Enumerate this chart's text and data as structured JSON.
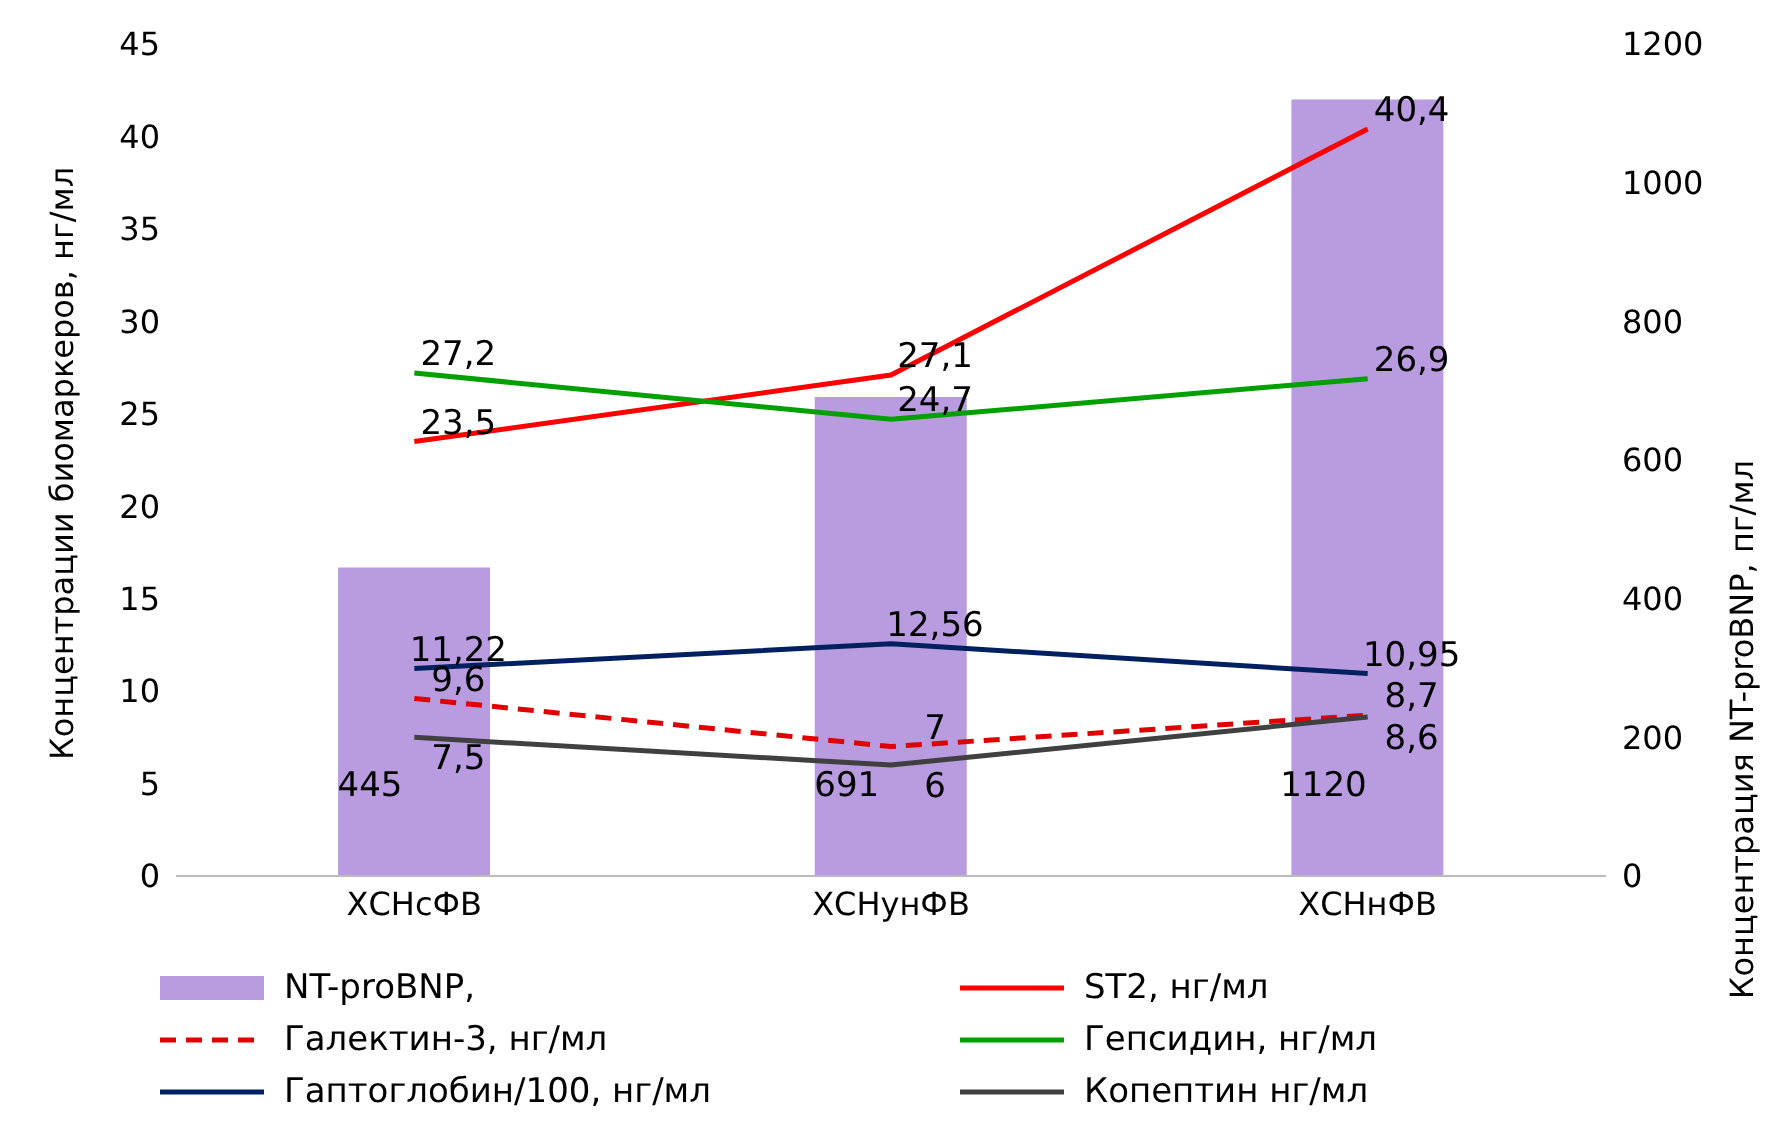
{
  "chart_data": {
    "type": "line",
    "categories": [
      "ХСНсФВ",
      "ХСНунФВ",
      "ХСНнФВ"
    ],
    "ylabel": "Концентрации биомаркеров, нг/мл",
    "y2label": "Концентрация NT-proBNP, пг/мл",
    "ylim": [
      0,
      45
    ],
    "yticks": [
      0,
      5,
      10,
      15,
      20,
      25,
      30,
      35,
      40,
      45
    ],
    "y2lim": [
      0,
      1200
    ],
    "y2ticks": [
      0,
      200,
      400,
      600,
      800,
      1000,
      1200
    ],
    "legend": "bottom",
    "series": [
      {
        "name": "NT-proBNP,",
        "type": "bar",
        "axis": "y2",
        "color": "#b99be0",
        "values": [
          445,
          691,
          1120
        ],
        "value_labels": [
          "445",
          "691",
          "1120"
        ]
      },
      {
        "name": "ST2, нг/мл",
        "color": "#ff0000",
        "values": [
          23.5,
          27.1,
          40.4
        ],
        "value_labels": [
          "23,5",
          "27,1",
          "40,4"
        ]
      },
      {
        "name": "Галектин-3, нг/мл",
        "color": "#e00000",
        "line_style": "dashed",
        "values": [
          9.6,
          7,
          8.7
        ],
        "value_labels": [
          "9,6",
          "7",
          "8,7"
        ]
      },
      {
        "name": "Гепсидин, нг/мл",
        "color": "#00a000",
        "values": [
          27.2,
          24.7,
          26.9
        ],
        "value_labels": [
          "27,2",
          "24,7",
          "26,9"
        ]
      },
      {
        "name": "Гаптоглобин/100, нг/мл",
        "color": "#002060",
        "values": [
          11.22,
          12.56,
          10.95
        ],
        "value_labels": [
          "11,22",
          "12,56",
          "10,95"
        ]
      },
      {
        "name": "Копептин нг/мл",
        "color": "#404040",
        "values": [
          7.5,
          6,
          8.6
        ],
        "value_labels": [
          "7,5",
          "6",
          "8,6"
        ]
      }
    ]
  }
}
